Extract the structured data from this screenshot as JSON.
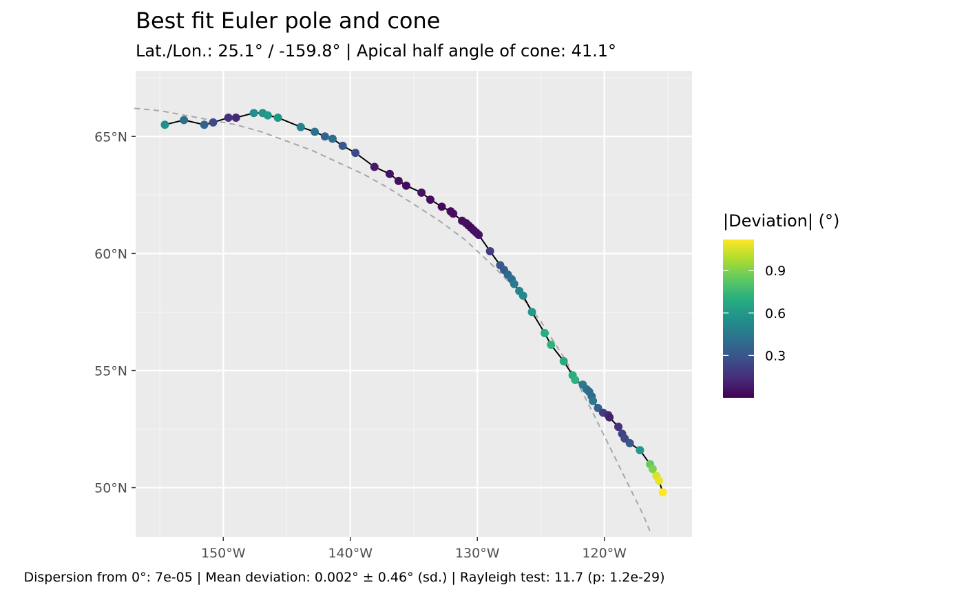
{
  "chart_data": {
    "type": "scatter",
    "title": "Best fit Euler pole and cone",
    "subtitle": "Lat./Lon.: 25.1° / -159.8° | Apical half angle of cone: 41.1°",
    "caption": "Dispersion from 0°: 7e-05 | Mean deviation: 0.002° ± 0.46° (sd.) | Rayleigh test: 11.7 (p: 1.2e-29)",
    "xlabel": "",
    "ylabel": "",
    "x_axis": {
      "ticks": [
        -150,
        -140,
        -130,
        -120
      ],
      "tick_labels": [
        "150°W",
        "140°W",
        "130°W",
        "120°W"
      ]
    },
    "y_axis": {
      "ticks": [
        50,
        55,
        60,
        65
      ],
      "tick_labels": [
        "50°N",
        "55°N",
        "60°N",
        "65°N"
      ]
    },
    "xlim": [
      -156.9,
      -113.1
    ],
    "ylim": [
      47.9,
      67.8
    ],
    "grid": true,
    "legend": {
      "title": "|Deviation| (°)",
      "type": "colorbar",
      "position": "right",
      "colormap": "viridis",
      "range": [
        0.0,
        1.12
      ],
      "breaks": [
        0.3,
        0.6,
        0.9
      ],
      "break_labels": [
        "0.3",
        "0.6",
        "0.9"
      ]
    },
    "colors": {
      "panel_background": "#ebebeb",
      "grid": "#ffffff",
      "line": "#000000",
      "cone": "#a6a6a6"
    },
    "series": [
      {
        "type": "scatter-line",
        "lon": [
          -154.6,
          -153.1,
          -151.5,
          -150.8,
          -149.6,
          -149.0,
          -147.6,
          -146.9,
          -146.5,
          -145.7,
          -143.9,
          -142.8,
          -142.0,
          -141.4,
          -140.6,
          -139.6,
          -138.1,
          -136.9,
          -136.2,
          -135.6,
          -134.4,
          -133.7,
          -132.8,
          -132.1,
          -131.9,
          -131.2,
          -130.9,
          -130.7,
          -130.5,
          -130.3,
          -130.1,
          -129.9,
          -129.0,
          -128.2,
          -127.9,
          -127.6,
          -127.3,
          -127.1,
          -126.7,
          -126.4,
          -125.7,
          -124.7,
          -124.2,
          -123.2,
          -122.5,
          -122.3,
          -121.7,
          -121.4,
          -121.2,
          -121.0,
          -120.9,
          -120.5,
          -120.1,
          -119.7,
          -119.6,
          -118.9,
          -118.6,
          -118.4,
          -118.0,
          -117.2,
          -116.4,
          -116.2,
          -115.9,
          -115.7,
          -115.4
        ],
        "lat": [
          65.5,
          65.7,
          65.5,
          65.6,
          65.8,
          65.8,
          66.0,
          66.0,
          65.9,
          65.8,
          65.4,
          65.2,
          65.0,
          64.9,
          64.6,
          64.3,
          63.7,
          63.4,
          63.1,
          62.9,
          62.6,
          62.3,
          62.0,
          61.8,
          61.7,
          61.4,
          61.3,
          61.2,
          61.1,
          61.0,
          60.9,
          60.8,
          60.1,
          59.5,
          59.3,
          59.1,
          58.9,
          58.7,
          58.4,
          58.2,
          57.5,
          56.6,
          56.1,
          55.4,
          54.8,
          54.6,
          54.4,
          54.2,
          54.1,
          53.9,
          53.7,
          53.4,
          53.2,
          53.1,
          53.0,
          52.6,
          52.3,
          52.1,
          51.9,
          51.6,
          51.0,
          50.8,
          50.5,
          50.3,
          49.8
        ],
        "deviation": [
          0.55,
          0.4,
          0.35,
          0.25,
          0.15,
          0.12,
          0.55,
          0.58,
          0.6,
          0.58,
          0.5,
          0.42,
          0.35,
          0.4,
          0.3,
          0.25,
          0.08,
          0.05,
          0.04,
          0.03,
          0.05,
          0.04,
          0.02,
          0.03,
          0.04,
          0.03,
          0.05,
          0.04,
          0.03,
          0.04,
          0.05,
          0.05,
          0.2,
          0.3,
          0.32,
          0.38,
          0.4,
          0.45,
          0.5,
          0.52,
          0.6,
          0.7,
          0.72,
          0.68,
          0.7,
          0.72,
          0.45,
          0.42,
          0.4,
          0.38,
          0.45,
          0.35,
          0.2,
          0.15,
          0.1,
          0.15,
          0.22,
          0.25,
          0.3,
          0.6,
          0.85,
          0.9,
          1.05,
          1.08,
          1.12
        ]
      },
      {
        "type": "dashed-line",
        "lon": [
          -157.0,
          -155.0,
          -153.0,
          -151.0,
          -149.0,
          -147.0,
          -145.0,
          -143.0,
          -141.0,
          -139.0,
          -137.0,
          -135.0,
          -133.0,
          -131.0,
          -129.0,
          -127.0,
          -125.0,
          -123.0,
          -121.0,
          -119.0,
          -117.0,
          -116.3
        ],
        "lat": [
          66.2,
          66.1,
          65.9,
          65.7,
          65.5,
          65.2,
          64.8,
          64.4,
          63.9,
          63.4,
          62.8,
          62.1,
          61.4,
          60.6,
          59.6,
          58.5,
          57.1,
          55.4,
          53.3,
          51.1,
          48.9,
          48.0
        ]
      }
    ]
  }
}
